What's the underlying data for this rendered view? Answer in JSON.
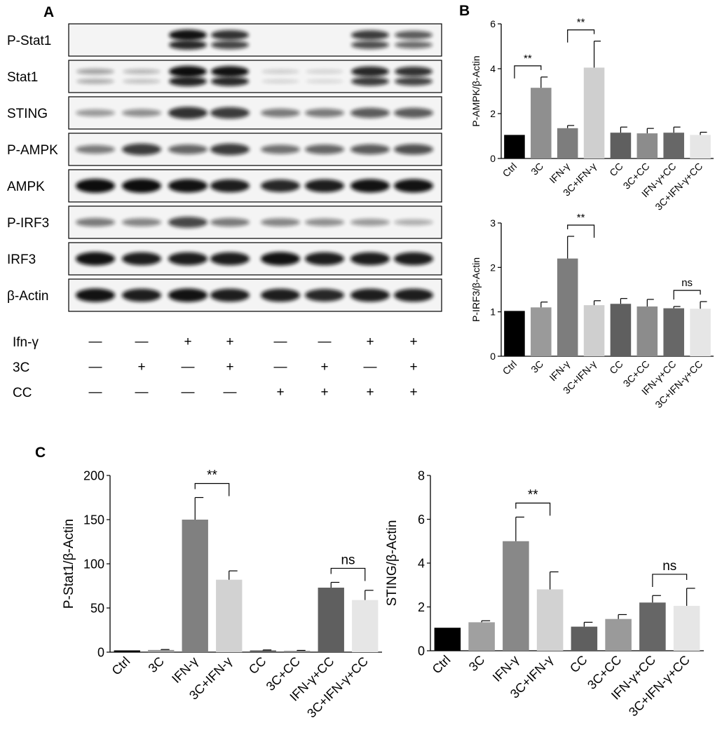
{
  "panels": {
    "a": "A",
    "b": "B",
    "c": "C"
  },
  "blot": {
    "rows": [
      {
        "label": "P-Stat1",
        "bands": [
          0,
          0,
          0.95,
          0.8,
          0,
          0,
          0.75,
          0.6
        ],
        "double": true
      },
      {
        "label": "Stat1",
        "bands": [
          0.25,
          0.15,
          1,
          0.95,
          0.05,
          0.03,
          0.85,
          0.8
        ],
        "double": true
      },
      {
        "label": "STING",
        "bands": [
          0.3,
          0.35,
          0.8,
          0.75,
          0.45,
          0.45,
          0.6,
          0.6
        ],
        "double": false
      },
      {
        "label": "P-AMPK",
        "bands": [
          0.45,
          0.75,
          0.55,
          0.75,
          0.5,
          0.55,
          0.6,
          0.65
        ],
        "double": false
      },
      {
        "label": "AMPK",
        "bands": [
          1,
          1,
          0.95,
          0.9,
          0.85,
          0.9,
          0.95,
          0.95
        ],
        "double": false
      },
      {
        "label": "P-IRF3",
        "bands": [
          0.45,
          0.4,
          0.7,
          0.45,
          0.4,
          0.35,
          0.3,
          0.2
        ],
        "double": false
      },
      {
        "label": "IRF3",
        "bands": [
          0.95,
          0.9,
          0.9,
          0.9,
          0.95,
          0.9,
          0.9,
          0.9
        ],
        "double": false
      },
      {
        "label": "β-Actin",
        "bands": [
          0.95,
          0.9,
          0.95,
          0.9,
          0.9,
          0.85,
          0.9,
          0.9
        ],
        "double": false
      }
    ],
    "conditions": [
      {
        "label": "Ifn-γ",
        "marks": [
          "—",
          "—",
          "+",
          "+",
          "—",
          "—",
          "+",
          "+"
        ]
      },
      {
        "label": "3C",
        "marks": [
          "—",
          "+",
          "—",
          "+",
          "—",
          "+",
          "—",
          "+"
        ]
      },
      {
        "label": "CC",
        "marks": [
          "—",
          "—",
          "—",
          "—",
          "+",
          "+",
          "+",
          "+"
        ]
      }
    ]
  },
  "chart_data": [
    {
      "type": "bar",
      "id": "p-ampk",
      "categories": [
        "Ctrl",
        "3C",
        "IFN-γ",
        "3C+IFN-γ",
        "CC",
        "3C+CC",
        "IFN-γ+CC",
        "3C+IFN-γ+CC"
      ],
      "values": [
        1.05,
        3.15,
        1.35,
        4.05,
        1.15,
        1.12,
        1.15,
        1.05
      ],
      "errors": [
        0,
        0.48,
        0.12,
        1.18,
        0.25,
        0.22,
        0.25,
        0.12
      ],
      "colors": [
        "#000000",
        "#8f8f8f",
        "#7d7d7d",
        "#cfcfcf",
        "#5f5f5f",
        "#8c8c8c",
        "#676767",
        "#e6e6e6"
      ],
      "ylabel": "P-AMPK/β-Actin",
      "ylim": [
        0,
        6
      ],
      "yticks": [
        "0",
        "2",
        "4",
        "6"
      ],
      "annotations": [
        {
          "from": 0,
          "to": 1,
          "text": "**"
        },
        {
          "from": 2,
          "to": 3,
          "text": "**"
        }
      ]
    },
    {
      "type": "bar",
      "id": "p-irf3",
      "categories": [
        "Ctrl",
        "3C",
        "IFN-γ",
        "3C+IFN-γ",
        "CC",
        "3C+CC",
        "IFN-γ+CC",
        "3C+IFN-γ+CC"
      ],
      "values": [
        1.02,
        1.1,
        2.2,
        1.15,
        1.18,
        1.12,
        1.08,
        1.07
      ],
      "errors": [
        0,
        0.12,
        0.5,
        0.1,
        0.12,
        0.16,
        0.04,
        0.16
      ],
      "colors": [
        "#000000",
        "#9a9a9a",
        "#7d7d7d",
        "#cfcfcf",
        "#5f5f5f",
        "#8c8c8c",
        "#676767",
        "#e6e6e6"
      ],
      "ylabel": "P-IRF3/β-Actin",
      "ylim": [
        0,
        3
      ],
      "yticks": [
        "0",
        "1",
        "2",
        "3"
      ],
      "annotations": [
        {
          "from": 2,
          "to": 3,
          "text": "**"
        },
        {
          "from": 6,
          "to": 7,
          "text": "ns"
        }
      ]
    },
    {
      "type": "bar",
      "id": "p-stat1",
      "categories": [
        "Ctrl",
        "3C",
        "IFN-γ",
        "3C+IFN-γ",
        "CC",
        "3C+CC",
        "IFN-γ+CC",
        "3C+IFN-γ+CC"
      ],
      "values": [
        2,
        2.5,
        150,
        82,
        2,
        1.5,
        73,
        59
      ],
      "errors": [
        0,
        0.5,
        25,
        10,
        0.5,
        0.5,
        6,
        11
      ],
      "colors": [
        "#000000",
        "#9a9a9a",
        "#808080",
        "#d2d2d2",
        "#5f5f5f",
        "#8c8c8c",
        "#5f5f5f",
        "#e6e6e6"
      ],
      "ylabel": "P-Stat1/β-Actin",
      "ylim": [
        0,
        200
      ],
      "yticks": [
        "0",
        "50",
        "100",
        "150",
        "200"
      ],
      "annotations": [
        {
          "from": 2,
          "to": 3,
          "text": "**"
        },
        {
          "from": 6,
          "to": 7,
          "text": "ns"
        }
      ]
    },
    {
      "type": "bar",
      "id": "sting",
      "categories": [
        "Ctrl",
        "3C",
        "IFN-γ",
        "3C+IFN-γ",
        "CC",
        "3C+CC",
        "IFN-γ+CC",
        "3C+IFN-γ+CC"
      ],
      "values": [
        1.05,
        1.3,
        5,
        2.8,
        1.1,
        1.45,
        2.2,
        2.05
      ],
      "errors": [
        0,
        0.07,
        1.1,
        0.8,
        0.2,
        0.2,
        0.32,
        0.8
      ],
      "colors": [
        "#000000",
        "#a0a0a0",
        "#888888",
        "#d2d2d2",
        "#5f5f5f",
        "#9a9a9a",
        "#666666",
        "#e6e6e6"
      ],
      "ylabel": "STING/β-Actin",
      "ylim": [
        0,
        8
      ],
      "yticks": [
        "0",
        "2",
        "4",
        "6",
        "8"
      ],
      "annotations": [
        {
          "from": 2,
          "to": 3,
          "text": "**"
        },
        {
          "from": 6,
          "to": 7,
          "text": "ns"
        }
      ]
    }
  ]
}
